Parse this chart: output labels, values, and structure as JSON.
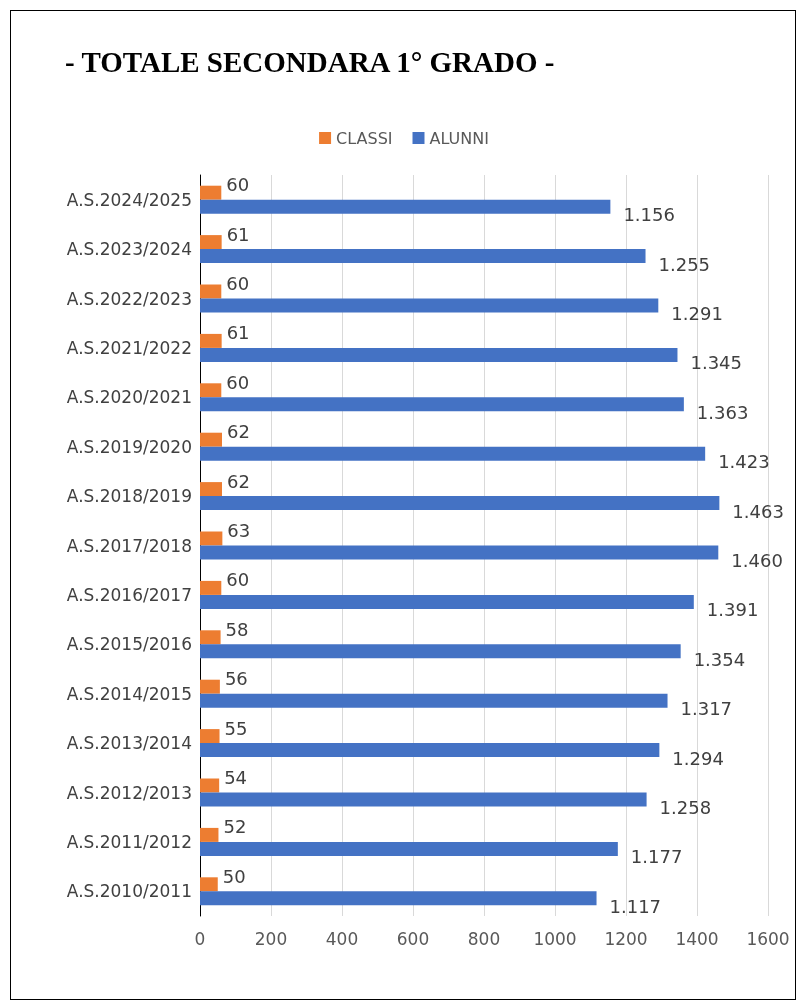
{
  "chart_data": {
    "type": "bar",
    "orientation": "horizontal",
    "title": "- TOTALE SECONDARA 1° GRADO -",
    "categories": [
      "A.S.2024/2025",
      "A.S.2023/2024",
      "A.S.2022/2023",
      "A.S.2021/2022",
      "A.S.2020/2021",
      "A.S.2019/2020",
      "A.S.2018/2019",
      "A.S.2017/2018",
      "A.S.2016/2017",
      "A.S.2015/2016",
      "A.S.2014/2015",
      "A.S.2013/2014",
      "A.S.2012/2013",
      "A.S.2011/2012",
      "A.S.2010/2011"
    ],
    "series": [
      {
        "name": "CLASSI",
        "color": "#ed7d31",
        "values": [
          60,
          61,
          60,
          61,
          60,
          62,
          62,
          63,
          60,
          58,
          56,
          55,
          54,
          52,
          50
        ],
        "value_labels": [
          "60",
          "61",
          "60",
          "61",
          "60",
          "62",
          "62",
          "63",
          "60",
          "58",
          "56",
          "55",
          "54",
          "52",
          "50"
        ]
      },
      {
        "name": "ALUNNI",
        "color": "#4472c4",
        "values": [
          1156,
          1255,
          1291,
          1345,
          1363,
          1423,
          1463,
          1460,
          1391,
          1354,
          1317,
          1294,
          1258,
          1177,
          1117
        ],
        "value_labels": [
          "1.156",
          "1.255",
          "1.291",
          "1.345",
          "1.363",
          "1.423",
          "1.463",
          "1.460",
          "1.391",
          "1.354",
          "1.317",
          "1.294",
          "1.258",
          "1.177",
          "1.117"
        ]
      }
    ],
    "xlim": [
      0,
      1600
    ],
    "xticks": [
      0,
      200,
      400,
      600,
      800,
      1000,
      1200,
      1400,
      1600
    ],
    "grid": "x",
    "legend": "top"
  }
}
